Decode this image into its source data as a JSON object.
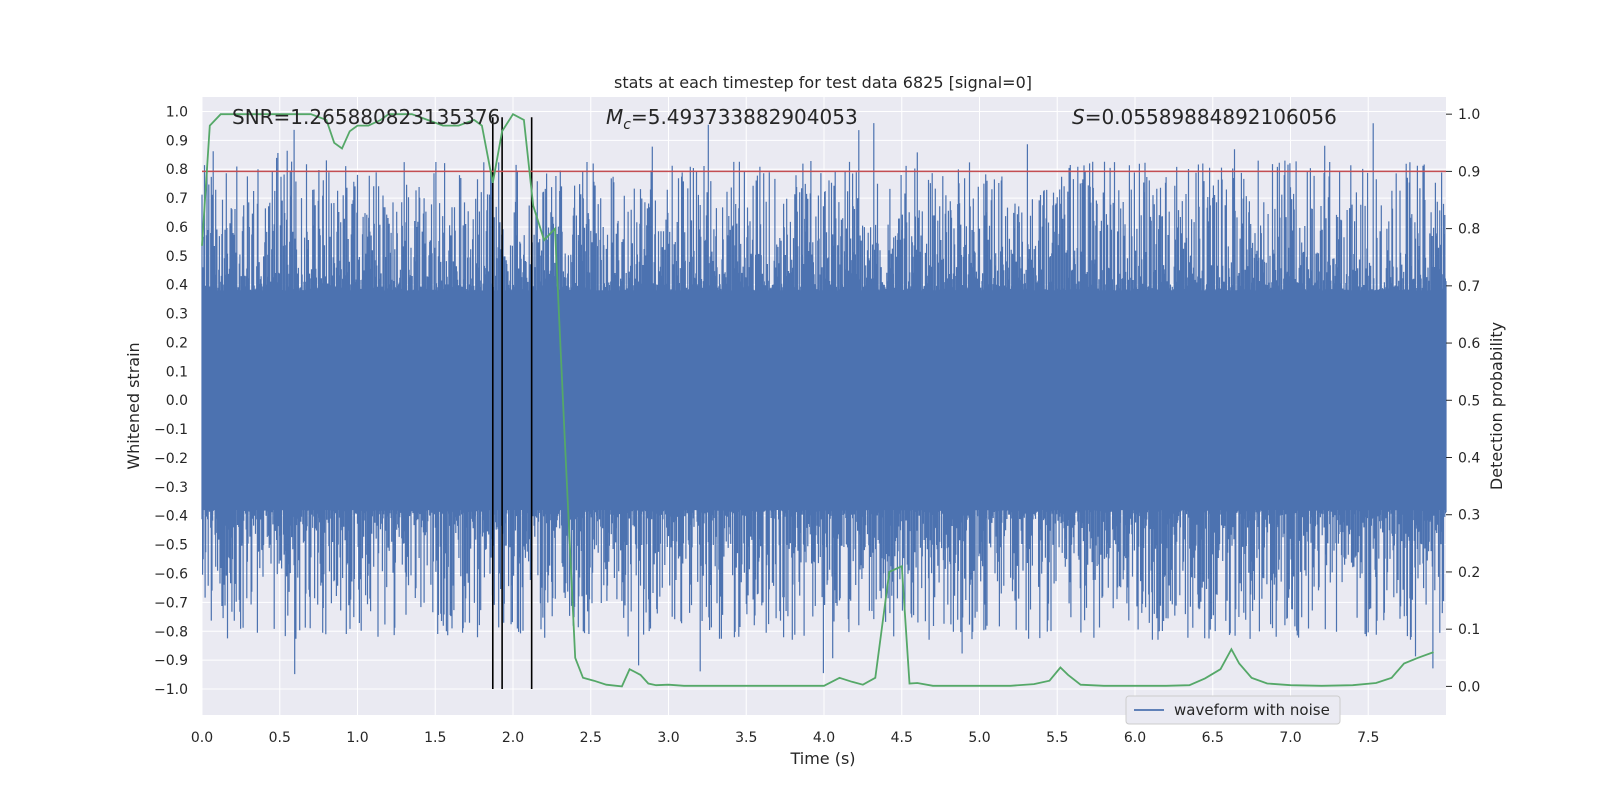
{
  "chart_data": {
    "type": "line",
    "title": "stats at each timestep for test data 6825 [signal=0]",
    "xlabel": "Time (s)",
    "ylabel_left": "Whitened strain",
    "ylabel_right": "Detection probability",
    "xlim": [
      0,
      8
    ],
    "ylim_left": [
      -1.09,
      1.05
    ],
    "ylim_right": [
      -0.05,
      1.03
    ],
    "x_ticks": [
      "0.0",
      "0.5",
      "1.0",
      "1.5",
      "2.0",
      "2.5",
      "3.0",
      "3.5",
      "4.0",
      "4.5",
      "5.0",
      "5.5",
      "6.0",
      "6.5",
      "7.0",
      "7.5"
    ],
    "x_tick_values": [
      0,
      0.5,
      1,
      1.5,
      2,
      2.5,
      3,
      3.5,
      4,
      4.5,
      5,
      5.5,
      6,
      6.5,
      7,
      7.5
    ],
    "y_left_ticks": [
      "1.0",
      "0.9",
      "0.8",
      "0.7",
      "0.6",
      "0.5",
      "0.4",
      "0.3",
      "0.2",
      "0.1",
      "0.0",
      "−0.1",
      "−0.2",
      "−0.3",
      "−0.4",
      "−0.5",
      "−0.6",
      "−0.7",
      "−0.8",
      "−0.9",
      "−1.0"
    ],
    "y_left_tick_values": [
      1.0,
      0.9,
      0.8,
      0.7,
      0.6,
      0.5,
      0.4,
      0.3,
      0.2,
      0.1,
      0.0,
      -0.1,
      -0.2,
      -0.3,
      -0.4,
      -0.5,
      -0.6,
      -0.7,
      -0.8,
      -0.9,
      -1.0
    ],
    "y_right_ticks": [
      "1.0",
      "0.9",
      "0.8",
      "0.7",
      "0.6",
      "0.5",
      "0.4",
      "0.3",
      "0.2",
      "0.1",
      "0.0"
    ],
    "y_right_tick_values": [
      1.0,
      0.9,
      0.8,
      0.7,
      0.6,
      0.5,
      0.4,
      0.3,
      0.2,
      0.1,
      0.0
    ],
    "annotations": {
      "snr": "SNR=1.265880823135376",
      "mc_symbol": "M",
      "mc_sub": "c",
      "mc_value": "=5.493733882904053",
      "s_symbol": "S",
      "s_value": "=0.05589884892106056"
    },
    "threshold_right": 0.9,
    "vertical_lines_x": [
      1.87,
      1.93,
      2.12
    ],
    "waveform": {
      "name": "waveform with noise",
      "color": "#4c72b0",
      "core_amplitude": 0.38,
      "sample_spacing": 0.004,
      "peak_max": 0.98,
      "peak_min": -0.98
    },
    "probability": {
      "color": "#55a868",
      "x": [
        0.0,
        0.05,
        0.12,
        0.2,
        0.3,
        0.45,
        0.6,
        0.7,
        0.8,
        0.85,
        0.9,
        0.95,
        1.0,
        1.07,
        1.15,
        1.2,
        1.27,
        1.35,
        1.45,
        1.55,
        1.65,
        1.75,
        1.8,
        1.87,
        1.93,
        2.0,
        2.07,
        2.13,
        2.2,
        2.27,
        2.33,
        2.4,
        2.45,
        2.52,
        2.6,
        2.7,
        2.75,
        2.82,
        2.87,
        2.92,
        3.0,
        3.1,
        3.2,
        3.4,
        3.6,
        3.8,
        4.0,
        4.1,
        4.18,
        4.25,
        4.33,
        4.42,
        4.5,
        4.55,
        4.6,
        4.7,
        4.8,
        5.0,
        5.2,
        5.35,
        5.45,
        5.52,
        5.57,
        5.65,
        5.8,
        6.0,
        6.2,
        6.35,
        6.45,
        6.55,
        6.62,
        6.67,
        6.75,
        6.85,
        7.0,
        7.2,
        7.4,
        7.55,
        7.65,
        7.73,
        7.82,
        7.92
      ],
      "y": [
        0.77,
        0.98,
        1.0,
        1.0,
        1.0,
        1.0,
        1.0,
        1.0,
        0.99,
        0.95,
        0.94,
        0.97,
        0.98,
        0.98,
        0.99,
        1.0,
        1.0,
        1.0,
        0.99,
        0.98,
        0.98,
        0.99,
        0.98,
        0.88,
        0.97,
        1.0,
        0.99,
        0.84,
        0.78,
        0.8,
        0.45,
        0.05,
        0.015,
        0.01,
        0.003,
        0.0,
        0.03,
        0.02,
        0.005,
        0.002,
        0.003,
        0.001,
        0.001,
        0.001,
        0.001,
        0.001,
        0.001,
        0.015,
        0.008,
        0.003,
        0.015,
        0.2,
        0.21,
        0.005,
        0.006,
        0.001,
        0.001,
        0.001,
        0.001,
        0.004,
        0.01,
        0.033,
        0.02,
        0.003,
        0.001,
        0.001,
        0.001,
        0.002,
        0.014,
        0.03,
        0.065,
        0.04,
        0.015,
        0.005,
        0.002,
        0.001,
        0.002,
        0.006,
        0.015,
        0.04,
        0.05,
        0.06
      ]
    },
    "threshold_color": "#c44e52",
    "legend": {
      "label": "waveform with noise",
      "position": "lower-right"
    }
  }
}
